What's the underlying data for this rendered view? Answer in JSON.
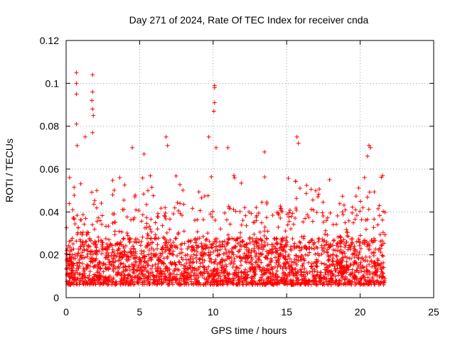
{
  "chart_data": {
    "type": "scatter",
    "title": "Day 271 of 2024, Rate Of TEC Index for receiver cnda",
    "xlabel": "GPS time / hours",
    "ylabel": "ROTI / TECUs",
    "xlim": [
      0,
      25
    ],
    "ylim": [
      0,
      0.12
    ],
    "x_ticks": [
      0,
      5,
      10,
      15,
      20,
      25
    ],
    "y_ticks": [
      0,
      0.02,
      0.04,
      0.06,
      0.08,
      0.1,
      0.12
    ],
    "x_tick_labels": [
      "0",
      "5",
      "10",
      "15",
      "20",
      "25"
    ],
    "y_tick_labels": [
      "0",
      "0.02",
      "0.04",
      "0.06",
      "0.08",
      "0.1",
      "0.12"
    ],
    "grid": true,
    "marker": "+",
    "color": "#ff0000",
    "series": [
      {
        "name": "ROTI",
        "x_range": [
          0,
          21.7
        ],
        "typical_range": [
          0.006,
          0.035
        ],
        "median": 0.016,
        "outliers": [
          {
            "x": 0.7,
            "y": 0.105
          },
          {
            "x": 0.7,
            "y": 0.1
          },
          {
            "x": 0.7,
            "y": 0.095
          },
          {
            "x": 0.7,
            "y": 0.081
          },
          {
            "x": 0.75,
            "y": 0.071
          },
          {
            "x": 1.3,
            "y": 0.075
          },
          {
            "x": 1.8,
            "y": 0.104
          },
          {
            "x": 1.8,
            "y": 0.096
          },
          {
            "x": 1.75,
            "y": 0.092
          },
          {
            "x": 1.8,
            "y": 0.088
          },
          {
            "x": 1.85,
            "y": 0.085
          },
          {
            "x": 1.8,
            "y": 0.077
          },
          {
            "x": 4.5,
            "y": 0.07
          },
          {
            "x": 5.3,
            "y": 0.067
          },
          {
            "x": 6.8,
            "y": 0.075
          },
          {
            "x": 6.9,
            "y": 0.071
          },
          {
            "x": 9.7,
            "y": 0.075
          },
          {
            "x": 10.1,
            "y": 0.099
          },
          {
            "x": 10.1,
            "y": 0.098
          },
          {
            "x": 10.1,
            "y": 0.091
          },
          {
            "x": 10.05,
            "y": 0.087
          },
          {
            "x": 10.2,
            "y": 0.07
          },
          {
            "x": 11.0,
            "y": 0.07
          },
          {
            "x": 13.5,
            "y": 0.068
          },
          {
            "x": 15.7,
            "y": 0.075
          },
          {
            "x": 15.8,
            "y": 0.072
          },
          {
            "x": 20.6,
            "y": 0.071
          },
          {
            "x": 20.7,
            "y": 0.07
          },
          {
            "x": 20.5,
            "y": 0.066
          }
        ]
      }
    ]
  }
}
